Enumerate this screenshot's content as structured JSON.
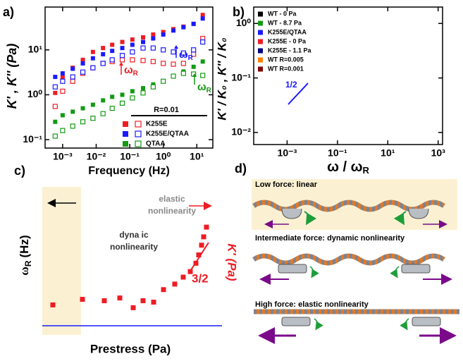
{
  "chart_data": [
    {
      "type": "scatter",
      "label": "a)",
      "xlabel": "Frequency (Hz)",
      "ylabel": "K' , K'' (Pa)",
      "xscale": "log",
      "yscale": "log",
      "xlim": [
        0.0003,
        30
      ],
      "ylim": [
        0.065,
        90
      ],
      "xticks": [
        {
          "value": 0.001,
          "label": "10⁻³"
        },
        {
          "value": 0.01,
          "label": "10⁻²"
        },
        {
          "value": 0.1,
          "label": "10⁻¹"
        },
        {
          "value": 1,
          "label": "10⁰"
        },
        {
          "value": 10,
          "label": "10¹"
        }
      ],
      "yticks": [
        {
          "value": 0.1,
          "label": "10⁻¹"
        },
        {
          "value": 1,
          "label": "10⁰"
        },
        {
          "value": 10,
          "label": "10¹"
        }
      ],
      "x": [
        0.0006,
        0.001,
        0.002,
        0.004,
        0.008,
        0.016,
        0.03,
        0.06,
        0.12,
        0.25,
        0.5,
        1,
        2,
        4,
        8,
        15
      ],
      "legend_title": "R=0.01",
      "series": [
        {
          "name": "K255E",
          "color": "#ee1c24",
          "values": [
            1.1,
            2.5,
            4,
            6,
            9,
            11,
            13,
            15,
            17,
            19,
            22,
            25,
            29,
            33,
            38,
            60
          ],
          "loss_values": [
            0.55,
            1.2,
            2,
            3,
            4,
            5,
            5.5,
            6,
            6,
            5.8,
            5.5,
            5,
            4.8,
            5,
            8,
            18
          ]
        },
        {
          "name": "K255E/QTAA",
          "color": "#1a1aff",
          "values": [
            2.5,
            3,
            3.8,
            5,
            6.5,
            8,
            9.5,
            11,
            13,
            15,
            18,
            22,
            27,
            32,
            38,
            50
          ],
          "loss_values": [
            1.5,
            2,
            2.5,
            3.2,
            4,
            5,
            6,
            7.5,
            9,
            11,
            11,
            10,
            9,
            8.5,
            10,
            15
          ]
        },
        {
          "name": "QTAA",
          "color": "#139a13",
          "values": [
            0.25,
            0.35,
            0.42,
            0.5,
            0.6,
            0.75,
            0.9,
            1.0,
            1.2,
            1.4,
            1.7,
            2,
            2.6,
            3.3,
            4.2,
            5.5
          ],
          "loss_values": [
            0.12,
            0.16,
            0.2,
            0.25,
            0.3,
            0.38,
            0.5,
            0.65,
            0.85,
            1.1,
            1.5,
            2,
            2.6,
            3,
            2.9,
            2.7
          ]
        }
      ],
      "annotations": [
        {
          "text": "ω",
          "sub": "R",
          "color": "#ee1c24"
        },
        {
          "text": "ω",
          "sub": "R",
          "color": "#1a1aff"
        },
        {
          "text": "ω",
          "sub": "R",
          "color": "#139a13"
        }
      ]
    },
    {
      "type": "scatter",
      "label": "b)",
      "xlabel": "ω / ω",
      "xlabel_sub": "R",
      "ylabel": "K' / K₀ , K'' / K₀",
      "xscale": "log",
      "yscale": "log",
      "xlim": [
        4.7e-05,
        1500
      ],
      "ylim": [
        0.006,
        2
      ],
      "xticks": [
        {
          "value": 0.001,
          "label": "10⁻³"
        },
        {
          "value": 0.1,
          "label": "10⁻¹"
        },
        {
          "value": 10,
          "label": "10¹"
        },
        {
          "value": 1000,
          "label": "10³"
        }
      ],
      "yticks": [
        {
          "value": 0.01,
          "label": "10⁻²"
        },
        {
          "value": 0.1,
          "label": "10⁻¹"
        },
        {
          "value": 1,
          "label": "10⁰"
        }
      ],
      "series": [
        {
          "name": "WT - 0 Pa",
          "color": "#000000"
        },
        {
          "name": "WT - 8.7 Pa",
          "color": "#139a13"
        },
        {
          "name": "K255E/QTAA",
          "color": "#1a1aff"
        },
        {
          "name": "K255E - 0 Pa",
          "color": "#ee1c24"
        },
        {
          "name": "K255E - 1.1 Pa",
          "color": "#00007f"
        },
        {
          "name": "WT R=0.005",
          "color": "#ff8000"
        },
        {
          "name": "WT R=0.001",
          "color": "#7f0000"
        }
      ],
      "slope_label": "1/2",
      "slope_color": "#1a1aff"
    },
    {
      "type": "scatter",
      "label": "c)",
      "xlabel": "Prestress (Pa)",
      "ylabel": "ω",
      "ylabel_sub": "R",
      "ylabel_unit": "(Hz)",
      "y2label": "K' (Pa)",
      "color": "#ee1c24",
      "xlim": [
        0,
        20
      ],
      "ylim": [
        0,
        10
      ],
      "x": [
        1.2,
        4.56,
        7.04,
        8.8,
        10.32,
        11.44,
        12.64,
        13.76,
        15.04,
        16,
        16.8,
        17.44,
        17.76,
        18.08,
        18.32,
        18.64
      ],
      "values": [
        1.5,
        1.9,
        1.8,
        2.0,
        1.3,
        1.8,
        1.7,
        2.6,
        3.0,
        3.5,
        3.9,
        4.5,
        5.1,
        5.8,
        6.4,
        7.1
      ],
      "slope_label": "3/2",
      "annotations": [
        [
          "elastic",
          "nonlinearity"
        ],
        [
          "dyna ic",
          "nonlinearity"
        ]
      ]
    }
  ],
  "diagram": {
    "label": "d)",
    "rows": [
      "Low force: linear",
      "Intermediate force: dynamic nonlinearity",
      "High force: elastic nonlinearity"
    ]
  }
}
